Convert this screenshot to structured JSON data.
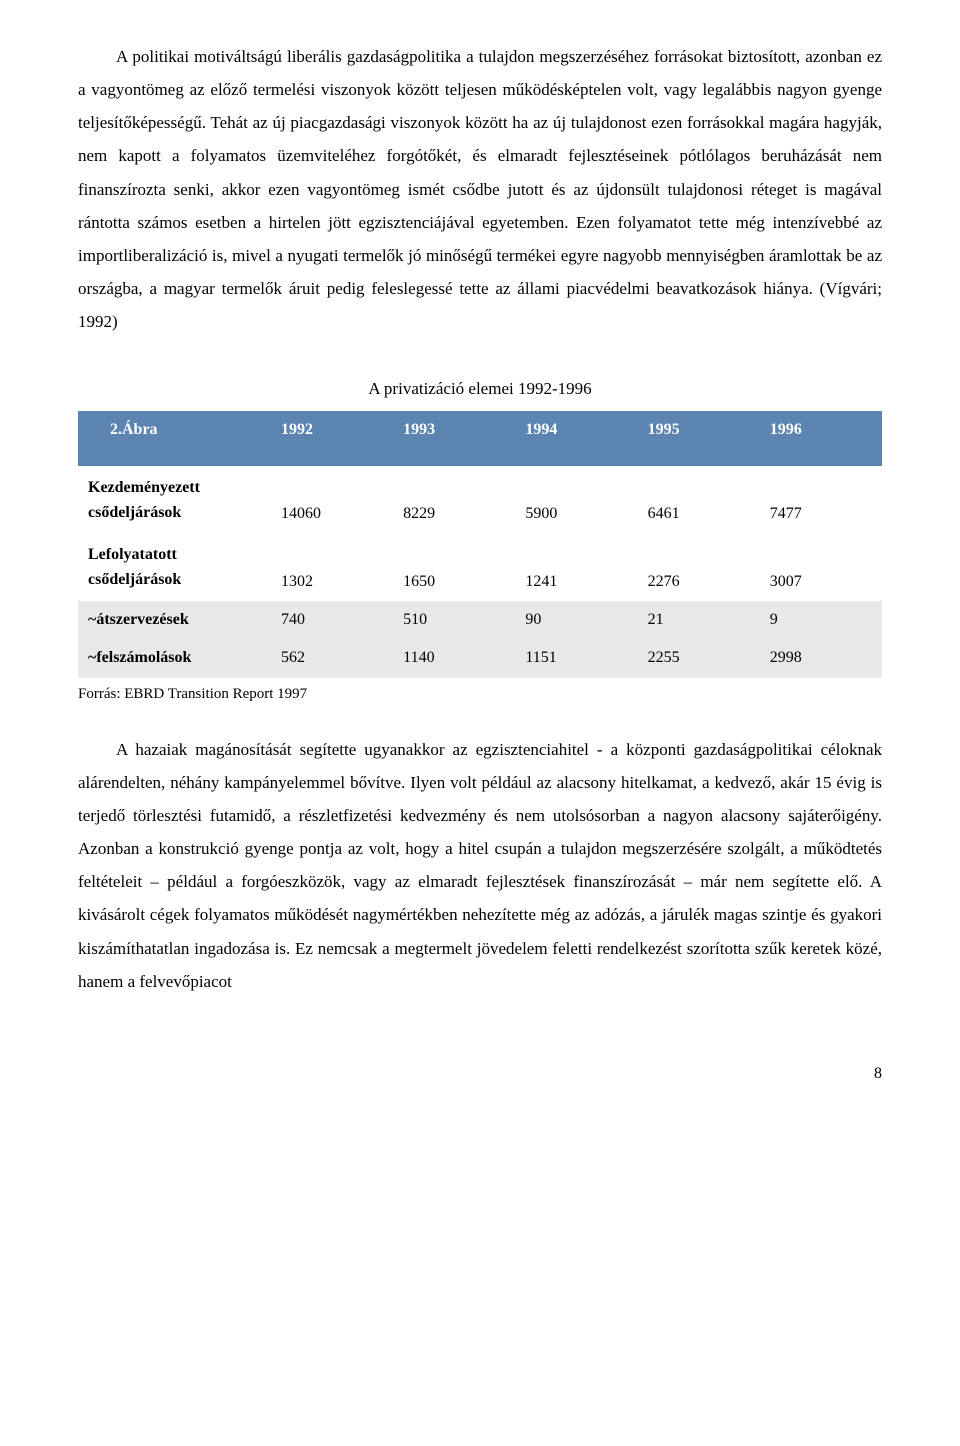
{
  "paragraphs": {
    "p1": "A politikai motiváltságú liberális gazdaságpolitika a tulajdon megszerzéséhez forrásokat biztosított, azonban ez a vagyontömeg az előző termelési viszonyok között teljesen működésképtelen volt, vagy legalábbis nagyon gyenge teljesítőképességű. Tehát az új piacgazdasági viszonyok között ha az új tulajdonost ezen forrásokkal magára hagyják, nem kapott a folyamatos üzemviteléhez forgótőkét, és elmaradt fejlesztéseinek pótlólagos beruházását nem finanszírozta senki, akkor ezen vagyontömeg ismét csődbe jutott és az újdonsült tulajdonosi réteget is magával rántotta számos esetben a hirtelen jött egzisztenciájával egyetemben. Ezen folyamatot tette még intenzívebbé az importliberalizáció is, mivel a nyugati termelők jó minőségű termékei egyre nagyobb mennyiségben áramlottak be az országba, a magyar termelők áruit pedig feleslegessé tette az állami piacvédelmi beavatkozások hiánya. (Vígvári; 1992)",
    "p2": "A hazaiak magánosítását segítette ugyanakkor az egzisztenciahitel - a központi gazdaságpolitikai céloknak alárendelten, néhány kampányelemmel bővítve. Ilyen volt például az alacsony hitelkamat, a kedvező, akár 15 évig is terjedő törlesztési futamidő, a részletfizetési kedvezmény és nem utolsósorban a nagyon alacsony sajáterőigény. Azonban a konstrukció gyenge pontja az volt, hogy a hitel csupán a tulajdon megszerzésére szolgált, a működtetés feltételeit – például a forgóeszközök, vagy az elmaradt fejlesztések finanszírozását – már nem segítette elő. A kivásárolt cégek folyamatos működését nagymértékben nehezítette még az adózás, a járulék magas szintje és gyakori kiszámíthatatlan ingadozása is. Ez nemcsak a megtermelt jövedelem feletti rendelkezést szorította szűk keretek közé, hanem a felvevőpiacot"
  },
  "table": {
    "title": "A privatizáció elemei 1992-1996",
    "header_bg": "#5b84b1",
    "header_fg": "#ffffff",
    "row_shade_bg": "#e8e8e8",
    "columns": [
      "2.Ábra",
      "1992",
      "1993",
      "1994",
      "1995",
      "1996"
    ],
    "col_widths": [
      "24%",
      "15.2%",
      "15.2%",
      "15.2%",
      "15.2%",
      "15.2%"
    ],
    "rows": [
      {
        "label": "Kezdeményezett csődeljárások",
        "multiline": true,
        "shaded": false,
        "values": [
          "14060",
          "8229",
          "5900",
          "6461",
          "7477"
        ]
      },
      {
        "label": "Lefolyatatott csődeljárások",
        "multiline": true,
        "shaded": false,
        "values": [
          "1302",
          "1650",
          "1241",
          "2276",
          "3007"
        ]
      },
      {
        "label": "~átszervezések",
        "multiline": false,
        "shaded": true,
        "values": [
          "740",
          "510",
          "90",
          "21",
          "9"
        ]
      },
      {
        "label": "~felszámolások",
        "multiline": false,
        "shaded": true,
        "values": [
          "562",
          "1140",
          "1151",
          "2255",
          "2998"
        ]
      }
    ],
    "source": "Forrás: EBRD Transition Report 1997"
  },
  "page_number": "8"
}
